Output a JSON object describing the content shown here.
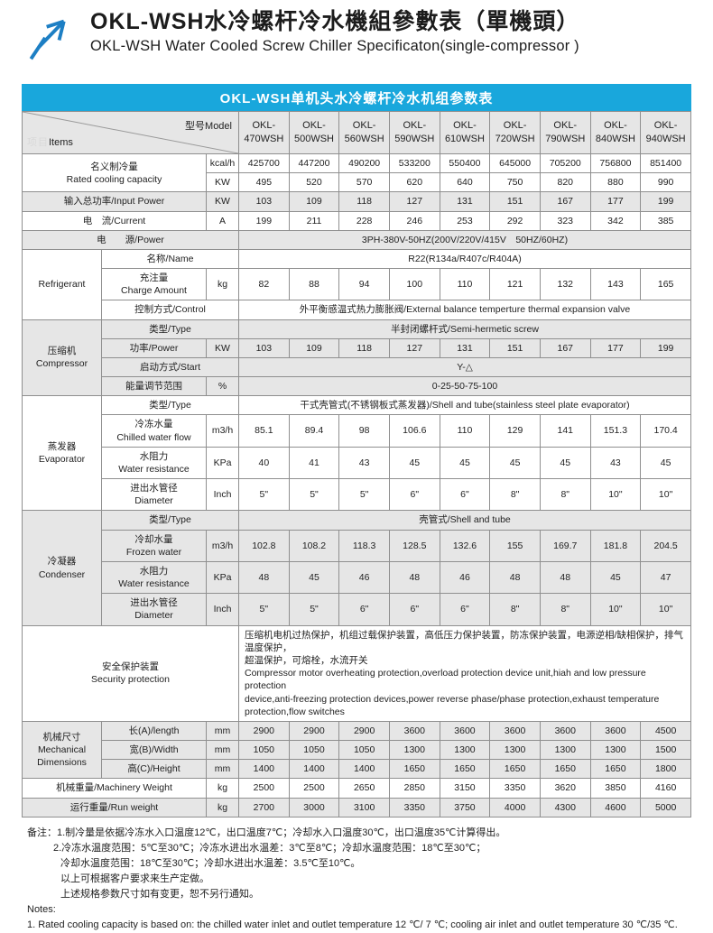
{
  "colors": {
    "banner_bg": "#19a7dc",
    "logo_blue": "#1d7fc4",
    "row_gray": "#e6e6e6",
    "grid_line": "#8f8f8f"
  },
  "masthead": {
    "title_zh": "OKL-WSH水冷螺杆冷水機組參數表（單機頭）",
    "title_en": "OKL-WSH Water Cooled Screw Chiller Specificaton(single-compressor )"
  },
  "banner": {
    "title": "OKL-WSH单机头水冷螺杆冷水机组参数表"
  },
  "table": {
    "corner": {
      "items_zh": "项目",
      "items_en": "Items",
      "model": "型号Model"
    },
    "models": [
      "OKL-\n470WSH",
      "OKL-\n500WSH",
      "OKL-\n560WSH",
      "OKL-\n590WSH",
      "OKL-\n610WSH",
      "OKL-\n720WSH",
      "OKL-\n790WSH",
      "OKL-\n840WSH",
      "OKL-\n940WSH"
    ],
    "rows": [
      {
        "bg": "w",
        "cells": [
          {
            "t": "名义制冷量\nRated cooling capacity",
            "cs": 2,
            "rs": 2,
            "k": "label"
          },
          {
            "t": "kcal/h",
            "k": "unit"
          },
          "425700",
          "447200",
          "490200",
          "533200",
          "550400",
          "645000",
          "705200",
          "756800",
          "851400"
        ]
      },
      {
        "bg": "w",
        "cells": [
          {
            "t": "KW",
            "k": "unit"
          },
          "495",
          "520",
          "570",
          "620",
          "640",
          "750",
          "820",
          "880",
          "990"
        ]
      },
      {
        "bg": "g",
        "cells": [
          {
            "t": "输入总功率/Input Power",
            "cs": 2,
            "k": "label"
          },
          {
            "t": "KW",
            "k": "unit"
          },
          "103",
          "109",
          "118",
          "127",
          "131",
          "151",
          "167",
          "177",
          "199"
        ]
      },
      {
        "bg": "w",
        "cells": [
          {
            "t": "电　流/Current",
            "cs": 2,
            "k": "label"
          },
          {
            "t": "A",
            "k": "unit"
          },
          "199",
          "211",
          "228",
          "246",
          "253",
          "292",
          "323",
          "342",
          "385"
        ]
      },
      {
        "bg": "g",
        "cells": [
          {
            "t": "电　　源/Power",
            "cs": 3,
            "k": "label"
          },
          {
            "t": "3PH-380V-50HZ(200V/220V/415V　50HZ/60HZ)",
            "cs": 9,
            "k": "val"
          }
        ]
      },
      {
        "bg": "w",
        "cells": [
          {
            "t": "Refrigerant",
            "rs": 3,
            "k": "group"
          },
          {
            "t": "名称/Name",
            "cs": 2,
            "k": "label"
          },
          {
            "t": "R22(R134a/R407c/R404A)",
            "cs": 9,
            "k": "val"
          }
        ]
      },
      {
        "bg": "w",
        "cells": [
          {
            "t": "充注量\nCharge Amount",
            "k": "label"
          },
          {
            "t": "kg",
            "k": "unit"
          },
          "82",
          "88",
          "94",
          "100",
          "110",
          "121",
          "132",
          "143",
          "165"
        ]
      },
      {
        "bg": "w",
        "cells": [
          {
            "t": "控制方式/Control",
            "cs": 2,
            "k": "label"
          },
          {
            "t": "外平衡感温式热力膨胀阀/External balance temperture thermal expansion valve",
            "cs": 9,
            "k": "val"
          }
        ]
      },
      {
        "bg": "g",
        "cells": [
          {
            "t": "压缩机\nCompressor",
            "rs": 4,
            "k": "group"
          },
          {
            "t": "类型/Type",
            "cs": 2,
            "k": "label"
          },
          {
            "t": "半封闭螺杆式/Semi-hermetic screw",
            "cs": 9,
            "k": "val"
          }
        ]
      },
      {
        "bg": "g",
        "cells": [
          {
            "t": "功率/Power",
            "k": "label"
          },
          {
            "t": "KW",
            "k": "unit"
          },
          "103",
          "109",
          "118",
          "127",
          "131",
          "151",
          "167",
          "177",
          "199"
        ]
      },
      {
        "bg": "g",
        "cells": [
          {
            "t": "启动方式/Start",
            "cs": 2,
            "k": "label"
          },
          {
            "t": "Y-△",
            "cs": 9,
            "k": "val"
          }
        ]
      },
      {
        "bg": "g",
        "cells": [
          {
            "t": "能量调节范围",
            "k": "label"
          },
          {
            "t": "%",
            "k": "unit"
          },
          {
            "t": "0-25-50-75-100",
            "cs": 9,
            "k": "val"
          }
        ]
      },
      {
        "bg": "w",
        "cells": [
          {
            "t": "蒸发器\nEvaporator",
            "rs": 4,
            "k": "group"
          },
          {
            "t": "类型/Type",
            "cs": 2,
            "k": "label"
          },
          {
            "t": "干式壳管式(不锈钢板式蒸发器)/Shell and tube(stainless steel plate evaporator)",
            "cs": 9,
            "k": "val"
          }
        ]
      },
      {
        "bg": "w",
        "cells": [
          {
            "t": "冷冻水量\nChilled water flow",
            "k": "label"
          },
          {
            "t": "m3/h",
            "k": "unit"
          },
          "85.1",
          "89.4",
          "98",
          "106.6",
          "110",
          "129",
          "141",
          "151.3",
          "170.4"
        ]
      },
      {
        "bg": "w",
        "cells": [
          {
            "t": "水阻力\nWater resistance",
            "k": "label"
          },
          {
            "t": "KPa",
            "k": "unit"
          },
          "40",
          "41",
          "43",
          "45",
          "45",
          "45",
          "45",
          "43",
          "45"
        ]
      },
      {
        "bg": "w",
        "cells": [
          {
            "t": "进出水管径\nDiameter",
            "k": "label"
          },
          {
            "t": "Inch",
            "k": "unit"
          },
          "5\"",
          "5\"",
          "5\"",
          "6\"",
          "6\"",
          "8\"",
          "8\"",
          "10\"",
          "10\""
        ]
      },
      {
        "bg": "g",
        "cells": [
          {
            "t": "冷凝器\nCondenser",
            "rs": 4,
            "k": "group"
          },
          {
            "t": "类型/Type",
            "cs": 2,
            "k": "label"
          },
          {
            "t": "壳管式/Shell and tube",
            "cs": 9,
            "k": "val"
          }
        ]
      },
      {
        "bg": "g",
        "cells": [
          {
            "t": "冷却水量\nFrozen water",
            "k": "label"
          },
          {
            "t": "m3/h",
            "k": "unit"
          },
          "102.8",
          "108.2",
          "118.3",
          "128.5",
          "132.6",
          "155",
          "169.7",
          "181.8",
          "204.5"
        ]
      },
      {
        "bg": "g",
        "cells": [
          {
            "t": "水阻力\nWater resistance",
            "k": "label"
          },
          {
            "t": "KPa",
            "k": "unit"
          },
          "48",
          "45",
          "46",
          "48",
          "46",
          "48",
          "48",
          "45",
          "47"
        ]
      },
      {
        "bg": "g",
        "cells": [
          {
            "t": "进出水管径\nDiameter",
            "k": "label"
          },
          {
            "t": "Inch",
            "k": "unit"
          },
          "5\"",
          "5\"",
          "6\"",
          "6\"",
          "6\"",
          "8\"",
          "8\"",
          "10\"",
          "10\""
        ]
      },
      {
        "bg": "w",
        "cells": [
          {
            "t": "安全保护装置\nSecurity protection",
            "cs": 3,
            "k": "label"
          },
          {
            "t": "压缩机电机过热保护，机组过载保护装置，高低压力保护装置，防冻保护装置，电源逆相/缺相保护，排气温度保护，\n超温保护，可熔栓，水流开关\nCompressor motor overheating protection,overload protection device unit,hiah and low pressure protection\ndevice,anti-freezing protection devices,power reverse phase/phase protection,exhaust temperature\nprotection,flow switches",
            "cs": 9,
            "k": "long"
          }
        ]
      },
      {
        "bg": "g",
        "cells": [
          {
            "t": "机械尺寸\nMechanical\nDimensions",
            "rs": 3,
            "k": "group"
          },
          {
            "t": "长(A)/length",
            "k": "label"
          },
          {
            "t": "mm",
            "k": "unit"
          },
          "2900",
          "2900",
          "2900",
          "3600",
          "3600",
          "3600",
          "3600",
          "3600",
          "4500"
        ]
      },
      {
        "bg": "g",
        "cells": [
          {
            "t": "宽(B)/Width",
            "k": "label"
          },
          {
            "t": "mm",
            "k": "unit"
          },
          "1050",
          "1050",
          "1050",
          "1300",
          "1300",
          "1300",
          "1300",
          "1300",
          "1500"
        ]
      },
      {
        "bg": "g",
        "cells": [
          {
            "t": "高(C)/Height",
            "k": "label"
          },
          {
            "t": "mm",
            "k": "unit"
          },
          "1400",
          "1400",
          "1400",
          "1650",
          "1650",
          "1650",
          "1650",
          "1650",
          "1800"
        ]
      },
      {
        "bg": "w",
        "cells": [
          {
            "t": "机械重量/Machinery Weight",
            "cs": 2,
            "k": "label"
          },
          {
            "t": "kg",
            "k": "unit"
          },
          "2500",
          "2500",
          "2650",
          "2850",
          "3150",
          "3350",
          "3620",
          "3850",
          "4160"
        ]
      },
      {
        "bg": "g",
        "cells": [
          {
            "t": "运行重量/Run weight",
            "cs": 2,
            "k": "label"
          },
          {
            "t": "kg",
            "k": "unit"
          },
          "2700",
          "3000",
          "3100",
          "3350",
          "3750",
          "4000",
          "4300",
          "4600",
          "5000"
        ]
      }
    ]
  },
  "notes": {
    "lines": [
      {
        "t": "备注：1.制冷量是依据冷冻水入口温度12℃，出口温度7℃；冷却水入口温度30℃，出口温度35℃计算得出。",
        "ind": 0
      },
      {
        "t": "2.冷冻水温度范围：5℃至30℃；冷冻水进出水温差：3℃至8℃；冷却水温度范围：18℃至30℃；",
        "ind": 1
      },
      {
        "t": "冷却水温度范围：18℃至30℃；冷却水进出水温差：3.5℃至10℃。",
        "ind": 2
      },
      {
        "t": "以上可根据客户要求来生产定做。",
        "ind": 2
      },
      {
        "t": "上述规格参数尺寸如有变更，恕不另行通知。",
        "ind": 2
      },
      {
        "t": "Notes:",
        "ind": 0
      },
      {
        "t": "1. Rated cooling capacity is based on: the chilled water inlet and outlet temperature 12 ℃/ 7 ℃; cooling air inlet and outlet temperature 30 ℃/35 ℃.",
        "ind": 0
      }
    ]
  }
}
